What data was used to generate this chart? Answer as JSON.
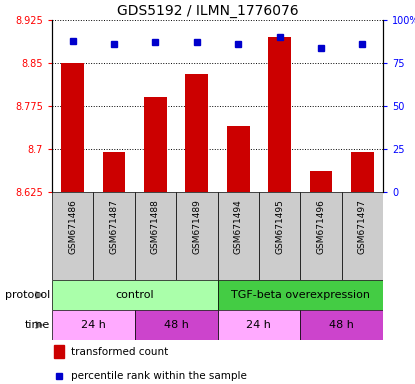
{
  "title": "GDS5192 / ILMN_1776076",
  "samples": [
    "GSM671486",
    "GSM671487",
    "GSM671488",
    "GSM671489",
    "GSM671494",
    "GSM671495",
    "GSM671496",
    "GSM671497"
  ],
  "bar_values": [
    8.85,
    8.695,
    8.79,
    8.83,
    8.74,
    8.895,
    8.662,
    8.695
  ],
  "percentile_values": [
    88,
    86,
    87,
    87,
    86,
    90,
    84,
    86
  ],
  "ylim_left": [
    8.625,
    8.925
  ],
  "ylim_right": [
    0,
    100
  ],
  "yticks_left": [
    8.625,
    8.7,
    8.775,
    8.85,
    8.925
  ],
  "ytick_labels_left": [
    "8.625",
    "8.7",
    "8.775",
    "8.85",
    "8.925"
  ],
  "yticks_right": [
    0,
    25,
    50,
    75,
    100
  ],
  "ytick_labels_right": [
    "0",
    "25",
    "50",
    "75",
    "100%"
  ],
  "bar_color": "#cc0000",
  "dot_color": "#0000cc",
  "bar_bottom": 8.625,
  "protocol_groups": [
    {
      "label": "control",
      "start": 0,
      "end": 4,
      "color": "#aaffaa"
    },
    {
      "label": "TGF-beta overexpression",
      "start": 4,
      "end": 8,
      "color": "#44cc44"
    }
  ],
  "time_groups": [
    {
      "label": "24 h",
      "start": 0,
      "end": 2,
      "color": "#ffaaff"
    },
    {
      "label": "48 h",
      "start": 2,
      "end": 4,
      "color": "#cc44cc"
    },
    {
      "label": "24 h",
      "start": 4,
      "end": 6,
      "color": "#ffaaff"
    },
    {
      "label": "48 h",
      "start": 6,
      "end": 8,
      "color": "#cc44cc"
    }
  ],
  "legend_bar_color": "#cc0000",
  "legend_dot_color": "#0000cc",
  "sample_box_color": "#cccccc",
  "left_label_color": "red",
  "right_label_color": "blue"
}
